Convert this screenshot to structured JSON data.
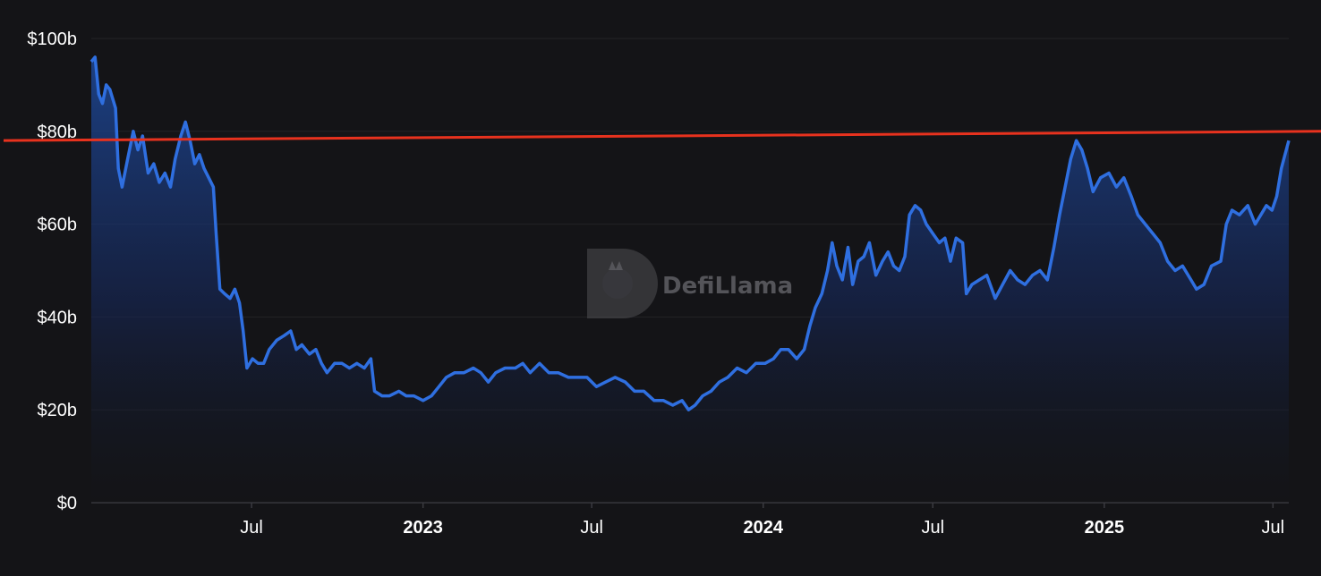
{
  "watermark": {
    "text": "DefiLlama",
    "icon": "llama-logo-icon"
  },
  "chart_data": {
    "type": "area",
    "title": "",
    "xlabel": "",
    "ylabel": "",
    "ylim": [
      0,
      100
    ],
    "y_ticks": [
      {
        "value": 0,
        "label": "$0"
      },
      {
        "value": 20,
        "label": "$20b"
      },
      {
        "value": 40,
        "label": "$40b"
      },
      {
        "value": 60,
        "label": "$60b"
      },
      {
        "value": 80,
        "label": "$80b"
      },
      {
        "value": 100,
        "label": "$100b"
      }
    ],
    "xlim": [
      "2022-01-10",
      "2025-07-18"
    ],
    "x_ticks": [
      {
        "date": "2022-07-01",
        "label": "Jul",
        "bold": false
      },
      {
        "date": "2023-01-01",
        "label": "2023",
        "bold": true
      },
      {
        "date": "2023-07-01",
        "label": "Jul",
        "bold": false
      },
      {
        "date": "2024-01-01",
        "label": "2024",
        "bold": true
      },
      {
        "date": "2024-07-01",
        "label": "Jul",
        "bold": false
      },
      {
        "date": "2025-01-01",
        "label": "2025",
        "bold": true
      },
      {
        "date": "2025-07-01",
        "label": "Jul",
        "bold": false
      }
    ],
    "grid": true,
    "colors": {
      "line": "#2f6fe0",
      "reference": "#e8321e",
      "grid": "#232327",
      "background": "#141417",
      "axis": "#3a3a40"
    },
    "series": [
      {
        "points": [
          [
            "2022-01-10",
            95
          ],
          [
            "2022-01-14",
            96
          ],
          [
            "2022-01-18",
            88
          ],
          [
            "2022-01-22",
            86
          ],
          [
            "2022-01-26",
            90
          ],
          [
            "2022-01-30",
            89
          ],
          [
            "2022-02-05",
            85
          ],
          [
            "2022-02-08",
            72
          ],
          [
            "2022-02-12",
            68
          ],
          [
            "2022-02-18",
            74
          ],
          [
            "2022-02-24",
            80
          ],
          [
            "2022-03-01",
            76
          ],
          [
            "2022-03-06",
            79
          ],
          [
            "2022-03-12",
            71
          ],
          [
            "2022-03-18",
            73
          ],
          [
            "2022-03-24",
            69
          ],
          [
            "2022-03-30",
            71
          ],
          [
            "2022-04-05",
            68
          ],
          [
            "2022-04-10",
            74
          ],
          [
            "2022-04-16",
            79
          ],
          [
            "2022-04-21",
            82
          ],
          [
            "2022-04-26",
            78
          ],
          [
            "2022-05-01",
            73
          ],
          [
            "2022-05-06",
            75
          ],
          [
            "2022-05-11",
            72
          ],
          [
            "2022-05-16",
            70
          ],
          [
            "2022-05-21",
            68
          ],
          [
            "2022-05-24",
            58
          ],
          [
            "2022-05-28",
            46
          ],
          [
            "2022-06-02",
            45
          ],
          [
            "2022-06-08",
            44
          ],
          [
            "2022-06-13",
            46
          ],
          [
            "2022-06-18",
            43
          ],
          [
            "2022-06-22",
            37
          ],
          [
            "2022-06-26",
            29
          ],
          [
            "2022-07-02",
            31
          ],
          [
            "2022-07-08",
            30
          ],
          [
            "2022-07-14",
            30
          ],
          [
            "2022-07-20",
            33
          ],
          [
            "2022-07-28",
            35
          ],
          [
            "2022-08-05",
            36
          ],
          [
            "2022-08-12",
            37
          ],
          [
            "2022-08-18",
            33
          ],
          [
            "2022-08-24",
            34
          ],
          [
            "2022-09-01",
            32
          ],
          [
            "2022-09-08",
            33
          ],
          [
            "2022-09-14",
            30
          ],
          [
            "2022-09-20",
            28
          ],
          [
            "2022-09-28",
            30
          ],
          [
            "2022-10-06",
            30
          ],
          [
            "2022-10-14",
            29
          ],
          [
            "2022-10-22",
            30
          ],
          [
            "2022-10-30",
            29
          ],
          [
            "2022-11-06",
            31
          ],
          [
            "2022-11-10",
            24
          ],
          [
            "2022-11-18",
            23
          ],
          [
            "2022-11-26",
            23
          ],
          [
            "2022-12-06",
            24
          ],
          [
            "2022-12-14",
            23
          ],
          [
            "2022-12-22",
            23
          ],
          [
            "2023-01-01",
            22
          ],
          [
            "2023-01-10",
            23
          ],
          [
            "2023-01-18",
            25
          ],
          [
            "2023-01-26",
            27
          ],
          [
            "2023-02-04",
            28
          ],
          [
            "2023-02-14",
            28
          ],
          [
            "2023-02-24",
            29
          ],
          [
            "2023-03-04",
            28
          ],
          [
            "2023-03-12",
            26
          ],
          [
            "2023-03-20",
            28
          ],
          [
            "2023-03-30",
            29
          ],
          [
            "2023-04-10",
            29
          ],
          [
            "2023-04-18",
            30
          ],
          [
            "2023-04-26",
            28
          ],
          [
            "2023-05-06",
            30
          ],
          [
            "2023-05-16",
            28
          ],
          [
            "2023-05-26",
            28
          ],
          [
            "2023-06-06",
            27
          ],
          [
            "2023-06-16",
            27
          ],
          [
            "2023-06-26",
            27
          ],
          [
            "2023-07-06",
            25
          ],
          [
            "2023-07-16",
            26
          ],
          [
            "2023-07-26",
            27
          ],
          [
            "2023-08-06",
            26
          ],
          [
            "2023-08-16",
            24
          ],
          [
            "2023-08-26",
            24
          ],
          [
            "2023-09-06",
            22
          ],
          [
            "2023-09-16",
            22
          ],
          [
            "2023-09-26",
            21
          ],
          [
            "2023-10-06",
            22
          ],
          [
            "2023-10-13",
            20
          ],
          [
            "2023-10-20",
            21
          ],
          [
            "2023-10-28",
            23
          ],
          [
            "2023-11-06",
            24
          ],
          [
            "2023-11-15",
            26
          ],
          [
            "2023-11-24",
            27
          ],
          [
            "2023-12-04",
            29
          ],
          [
            "2023-12-14",
            28
          ],
          [
            "2023-12-24",
            30
          ],
          [
            "2024-01-03",
            30
          ],
          [
            "2024-01-12",
            31
          ],
          [
            "2024-01-20",
            33
          ],
          [
            "2024-01-28",
            33
          ],
          [
            "2024-02-06",
            31
          ],
          [
            "2024-02-14",
            33
          ],
          [
            "2024-02-20",
            38
          ],
          [
            "2024-02-26",
            42
          ],
          [
            "2024-03-04",
            45
          ],
          [
            "2024-03-10",
            50
          ],
          [
            "2024-03-15",
            56
          ],
          [
            "2024-03-20",
            51
          ],
          [
            "2024-03-26",
            48
          ],
          [
            "2024-04-01",
            55
          ],
          [
            "2024-04-06",
            47
          ],
          [
            "2024-04-12",
            52
          ],
          [
            "2024-04-18",
            53
          ],
          [
            "2024-04-24",
            56
          ],
          [
            "2024-05-01",
            49
          ],
          [
            "2024-05-08",
            52
          ],
          [
            "2024-05-14",
            54
          ],
          [
            "2024-05-20",
            51
          ],
          [
            "2024-05-26",
            50
          ],
          [
            "2024-06-01",
            53
          ],
          [
            "2024-06-06",
            62
          ],
          [
            "2024-06-12",
            64
          ],
          [
            "2024-06-18",
            63
          ],
          [
            "2024-06-24",
            60
          ],
          [
            "2024-07-01",
            58
          ],
          [
            "2024-07-08",
            56
          ],
          [
            "2024-07-14",
            57
          ],
          [
            "2024-07-20",
            52
          ],
          [
            "2024-07-26",
            57
          ],
          [
            "2024-08-02",
            56
          ],
          [
            "2024-08-06",
            45
          ],
          [
            "2024-08-12",
            47
          ],
          [
            "2024-08-20",
            48
          ],
          [
            "2024-08-28",
            49
          ],
          [
            "2024-09-06",
            44
          ],
          [
            "2024-09-14",
            47
          ],
          [
            "2024-09-22",
            50
          ],
          [
            "2024-09-30",
            48
          ],
          [
            "2024-10-08",
            47
          ],
          [
            "2024-10-16",
            49
          ],
          [
            "2024-10-24",
            50
          ],
          [
            "2024-11-01",
            48
          ],
          [
            "2024-11-08",
            55
          ],
          [
            "2024-11-14",
            62
          ],
          [
            "2024-11-20",
            68
          ],
          [
            "2024-11-26",
            74
          ],
          [
            "2024-12-02",
            78
          ],
          [
            "2024-12-08",
            76
          ],
          [
            "2024-12-14",
            72
          ],
          [
            "2024-12-20",
            67
          ],
          [
            "2024-12-28",
            70
          ],
          [
            "2025-01-06",
            71
          ],
          [
            "2025-01-14",
            68
          ],
          [
            "2025-01-22",
            70
          ],
          [
            "2025-01-30",
            66
          ],
          [
            "2025-02-06",
            62
          ],
          [
            "2025-02-14",
            60
          ],
          [
            "2025-02-22",
            58
          ],
          [
            "2025-03-02",
            56
          ],
          [
            "2025-03-10",
            52
          ],
          [
            "2025-03-18",
            50
          ],
          [
            "2025-03-26",
            51
          ],
          [
            "2025-04-04",
            48
          ],
          [
            "2025-04-10",
            46
          ],
          [
            "2025-04-18",
            47
          ],
          [
            "2025-04-26",
            51
          ],
          [
            "2025-05-06",
            52
          ],
          [
            "2025-05-12",
            60
          ],
          [
            "2025-05-18",
            63
          ],
          [
            "2025-05-26",
            62
          ],
          [
            "2025-06-04",
            64
          ],
          [
            "2025-06-12",
            60
          ],
          [
            "2025-06-18",
            62
          ],
          [
            "2025-06-24",
            64
          ],
          [
            "2025-06-30",
            63
          ],
          [
            "2025-07-05",
            66
          ],
          [
            "2025-07-10",
            72
          ],
          [
            "2025-07-14",
            75
          ],
          [
            "2025-07-18",
            78
          ]
        ]
      }
    ],
    "reference_line": {
      "start_value": 78,
      "end_value": 80
    }
  }
}
